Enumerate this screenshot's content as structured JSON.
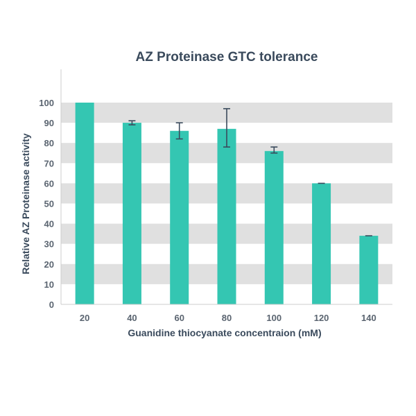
{
  "chart_data": {
    "type": "bar",
    "title": "AZ Proteinase GTC tolerance",
    "xlabel": "Guanidine thiocyanate concentraion (mM)",
    "ylabel": "Relative AZ Proteinase activity",
    "categories": [
      "20",
      "40",
      "60",
      "80",
      "100",
      "120",
      "140"
    ],
    "values": [
      100,
      90,
      86,
      87,
      76,
      60,
      34
    ],
    "error_low": [
      100,
      89,
      82,
      78,
      75,
      60,
      34
    ],
    "error_high": [
      100,
      91,
      90,
      97,
      78,
      60,
      34
    ],
    "ylim": [
      0,
      100
    ],
    "yticks": [
      0,
      10,
      20,
      30,
      40,
      50,
      60,
      70,
      80,
      90,
      100
    ],
    "grid": "alternating horizontal bands",
    "colors": {
      "bar": "#34c6b2",
      "band": "#e0e0e0",
      "axis": "#cccccc",
      "error_bar": "#3a4a5c"
    }
  }
}
